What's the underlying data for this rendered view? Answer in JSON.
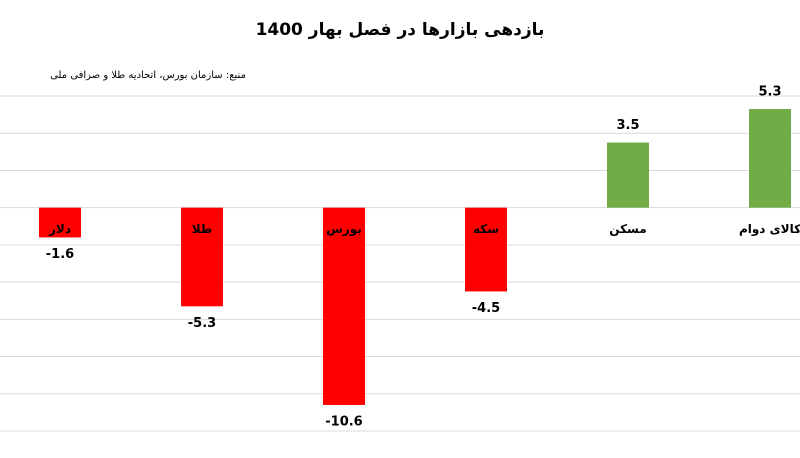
{
  "chart_data": {
    "type": "bar",
    "title": "بازدهی بازارها در فصل بهار 1400",
    "subtitle": "منبع: سازمان بورس، اتحادیه طلا و صرافی ملی",
    "categories": [
      "دلار",
      "طلا",
      "بورس",
      "سکه",
      "مسکن",
      "کالای دوام"
    ],
    "values": [
      -1.6,
      -5.3,
      -10.6,
      -4.5,
      3.5,
      5.3
    ],
    "colors": [
      "#ff0000",
      "#ff0000",
      "#ff0000",
      "#ff0000",
      "#70ad47",
      "#70ad47"
    ],
    "ylim": [
      -12,
      6
    ],
    "yticks": [
      -12,
      -10,
      -8,
      -6,
      -4,
      -2,
      0,
      2,
      4,
      6
    ],
    "grid": true
  }
}
